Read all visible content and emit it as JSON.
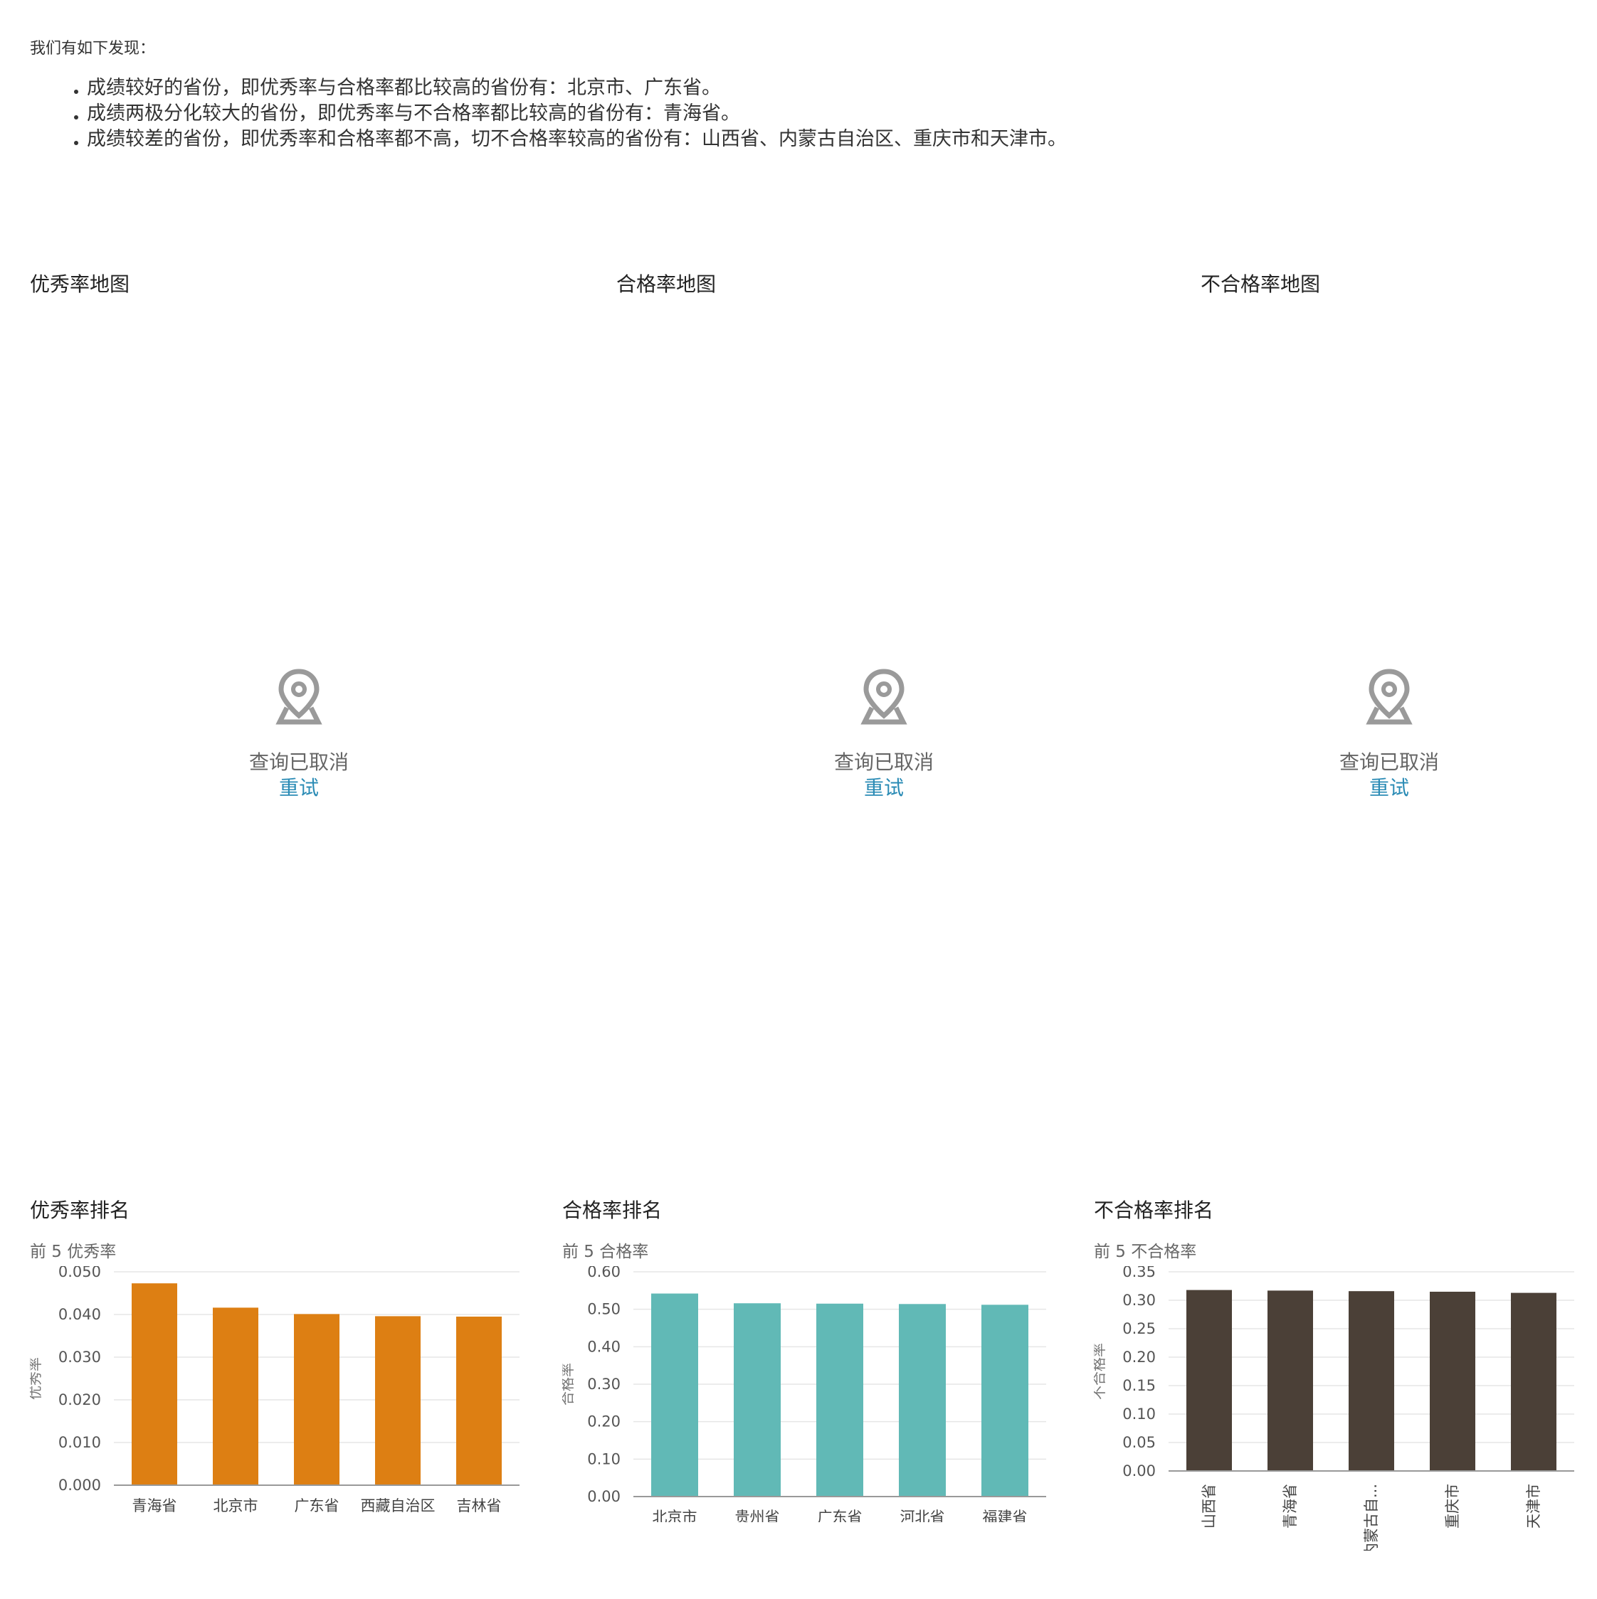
{
  "intro": "我们有如下发现：",
  "findings": [
    "成绩较好的省份，即优秀率与合格率都比较高的省份有：北京市、广东省。",
    "成绩两极分化较大的省份，即优秀率与不合格率都比较高的省份有：青海省。",
    "成绩较差的省份，即优秀率和合格率都不高，切不合格率较高的省份有：山西省、内蒙古自治区、重庆市和天津市。"
  ],
  "maps": [
    {
      "title": "优秀率地图",
      "status": "查询已取消",
      "retry": "重试",
      "icon": "map-pin-icon"
    },
    {
      "title": "合格率地图",
      "status": "查询已取消",
      "retry": "重试",
      "icon": "map-pin-icon"
    },
    {
      "title": "不合格率地图",
      "status": "查询已取消",
      "retry": "重试",
      "icon": "map-pin-icon"
    }
  ],
  "chart_data": [
    {
      "type": "bar",
      "title": "优秀率排名",
      "subtitle": "前 5 优秀率",
      "ylabel": "优秀率",
      "categories": [
        "青海省",
        "北京市",
        "广东省",
        "西藏自治区",
        "吉林省"
      ],
      "values": [
        0.0473,
        0.0416,
        0.0401,
        0.0396,
        0.0395
      ],
      "ylim": [
        0,
        0.05
      ],
      "yticks": [
        "0.000",
        "0.010",
        "0.020",
        "0.030",
        "0.040",
        "0.050"
      ],
      "color": "#dd7f13",
      "grid": true,
      "rotate_labels": false
    },
    {
      "type": "bar",
      "title": "合格率排名",
      "subtitle": "前 5 合格率",
      "ylabel": "合格率",
      "categories": [
        "北京市",
        "贵州省",
        "广东省",
        "河北省",
        "福建省"
      ],
      "values": [
        0.542,
        0.516,
        0.515,
        0.514,
        0.512
      ],
      "ylim": [
        0,
        0.6
      ],
      "yticks": [
        "0.00",
        "0.10",
        "0.20",
        "0.30",
        "0.40",
        "0.50",
        "0.60"
      ],
      "color": "#61b9b6",
      "grid": true,
      "rotate_labels": false
    },
    {
      "type": "bar",
      "title": "不合格率排名",
      "subtitle": "前 5 不合格率",
      "ylabel": "不合格率",
      "categories": [
        "山西省",
        "青海省",
        "内蒙古自...",
        "重庆市",
        "天津市"
      ],
      "values": [
        0.318,
        0.317,
        0.316,
        0.315,
        0.313
      ],
      "ylim": [
        0,
        0.35
      ],
      "yticks": [
        "0.00",
        "0.05",
        "0.10",
        "0.15",
        "0.20",
        "0.25",
        "0.30",
        "0.35"
      ],
      "color": "#4b4037",
      "grid": true,
      "rotate_labels": true
    }
  ]
}
